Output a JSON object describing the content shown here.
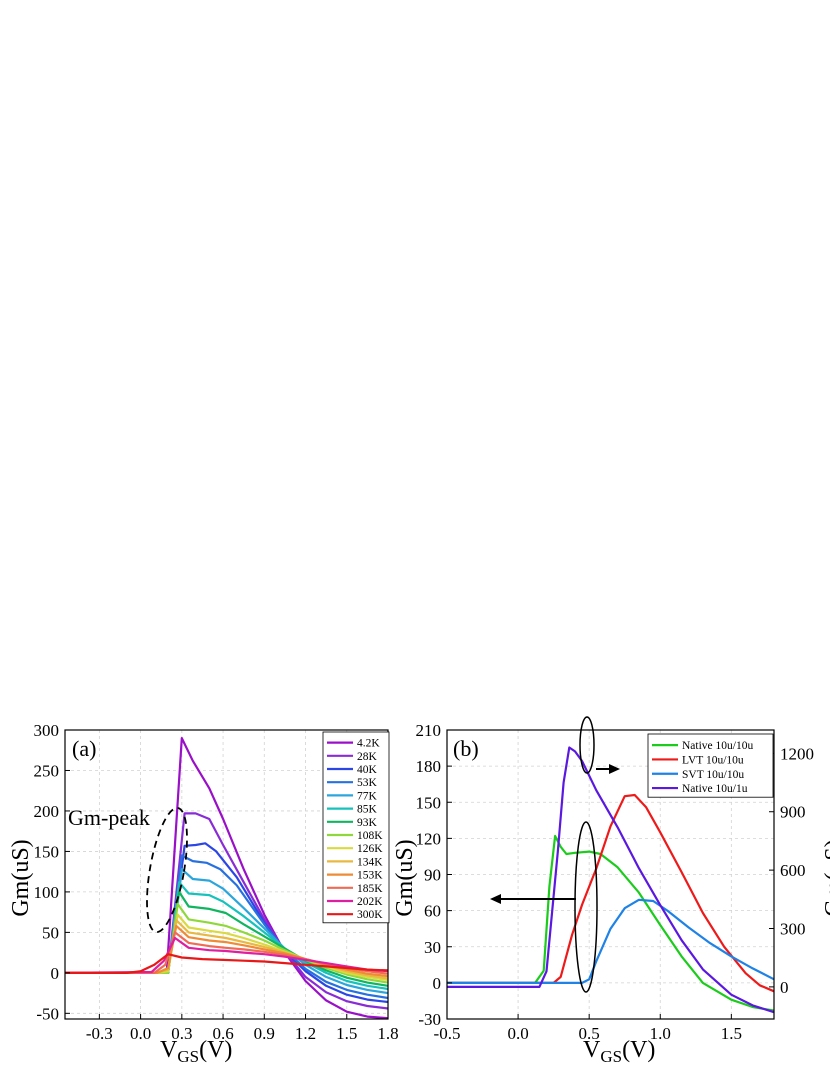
{
  "chart_data": [
    {
      "type": "line",
      "panel_label": "(a)",
      "annotation": "Gm-peak",
      "ylabel": "Gm(uS)",
      "xlabel_main": "V",
      "xlabel_sub": "GS",
      "xlabel_unit": "(V)",
      "xlim": [
        -0.55,
        1.8
      ],
      "ylim": [
        -57,
        300
      ],
      "xticks": [
        "-0.3",
        "0.0",
        "0.3",
        "0.6",
        "0.9",
        "1.2",
        "1.5",
        "1.8"
      ],
      "xtick_values": [
        -0.3,
        0.0,
        0.3,
        0.6,
        0.9,
        1.2,
        1.5,
        1.8
      ],
      "yticks": [
        "300",
        "250",
        "200",
        "150",
        "100",
        "50",
        "0",
        "-50"
      ],
      "ytick_values": [
        300,
        250,
        200,
        150,
        100,
        50,
        0,
        -50
      ],
      "grid": true,
      "legend_position": "top-right",
      "series": [
        {
          "name": "4.2K",
          "color": "#9a10c8",
          "x": [
            -0.55,
            0.09,
            0.19,
            0.3,
            0.38,
            0.5,
            0.6,
            0.75,
            0.9,
            1.05,
            1.2,
            1.35,
            1.5,
            1.65,
            1.8
          ],
          "y": [
            0,
            0,
            0,
            290,
            262,
            228,
            190,
            128,
            72,
            25,
            -10,
            -34,
            -48,
            -54,
            -56
          ]
        },
        {
          "name": "28K",
          "color": "#8a2cd6",
          "x": [
            -0.55,
            0.09,
            0.2,
            0.32,
            0.4,
            0.5,
            0.6,
            0.75,
            0.9,
            1.05,
            1.2,
            1.35,
            1.5,
            1.65,
            1.8
          ],
          "y": [
            0,
            0,
            0,
            197,
            197,
            190,
            158,
            112,
            66,
            26,
            -5,
            -24,
            -35,
            -41,
            -44
          ]
        },
        {
          "name": "40K",
          "color": "#2c46e6",
          "x": [
            -0.55,
            0.1,
            0.2,
            0.32,
            0.4,
            0.47,
            0.55,
            0.7,
            0.9,
            1.05,
            1.2,
            1.35,
            1.5,
            1.65,
            1.8
          ],
          "y": [
            0,
            0,
            0,
            157,
            158,
            160,
            150,
            118,
            62,
            27,
            2,
            -16,
            -27,
            -33,
            -36
          ]
        },
        {
          "name": "53K",
          "color": "#2670e0",
          "x": [
            -0.55,
            0.11,
            0.2,
            0.3,
            0.38,
            0.48,
            0.58,
            0.7,
            0.9,
            1.05,
            1.2,
            1.35,
            1.5,
            1.65,
            1.8
          ],
          "y": [
            0,
            0,
            0,
            145,
            138,
            136,
            128,
            108,
            60,
            28,
            5,
            -11,
            -21,
            -27,
            -31
          ]
        },
        {
          "name": "77K",
          "color": "#2aa6dc",
          "x": [
            -0.55,
            0.12,
            0.2,
            0.3,
            0.38,
            0.5,
            0.6,
            0.75,
            0.9,
            1.05,
            1.2,
            1.35,
            1.5,
            1.65,
            1.8
          ],
          "y": [
            0,
            0,
            0,
            128,
            116,
            114,
            104,
            80,
            55,
            30,
            10,
            -5,
            -15,
            -21,
            -25
          ]
        },
        {
          "name": "85K",
          "color": "#17c2bc",
          "x": [
            -0.55,
            0.12,
            0.2,
            0.28,
            0.35,
            0.5,
            0.6,
            0.75,
            0.9,
            1.05,
            1.2,
            1.35,
            1.5,
            1.65,
            1.8
          ],
          "y": [
            0,
            0,
            0,
            112,
            98,
            96,
            88,
            70,
            50,
            30,
            13,
            0,
            -10,
            -16,
            -20
          ]
        },
        {
          "name": "93K",
          "color": "#10b560",
          "x": [
            -0.55,
            0.12,
            0.2,
            0.28,
            0.35,
            0.5,
            0.62,
            0.75,
            0.9,
            1.05,
            1.2,
            1.35,
            1.5,
            1.65,
            1.8
          ],
          "y": [
            0,
            0,
            0,
            100,
            82,
            79,
            74,
            60,
            45,
            30,
            15,
            3,
            -6,
            -12,
            -16
          ]
        },
        {
          "name": "108K",
          "color": "#8fd83a",
          "x": [
            -0.55,
            0.12,
            0.2,
            0.27,
            0.35,
            0.5,
            0.62,
            0.75,
            0.9,
            1.05,
            1.2,
            1.35,
            1.5,
            1.65,
            1.8
          ],
          "y": [
            0,
            0,
            0,
            85,
            66,
            62,
            58,
            50,
            40,
            28,
            16,
            6,
            -2,
            -8,
            -12
          ]
        },
        {
          "name": "126K",
          "color": "#dada40",
          "x": [
            -0.55,
            0.12,
            0.2,
            0.27,
            0.35,
            0.5,
            0.62,
            0.75,
            0.9,
            1.05,
            1.2,
            1.35,
            1.5,
            1.65,
            1.8
          ],
          "y": [
            0,
            0,
            2,
            72,
            56,
            52,
            49,
            43,
            35,
            26,
            17,
            8,
            0,
            -5,
            -9
          ]
        },
        {
          "name": "134K",
          "color": "#e8b840",
          "x": [
            -0.55,
            0.12,
            0.2,
            0.26,
            0.35,
            0.5,
            0.62,
            0.75,
            0.9,
            1.05,
            1.2,
            1.35,
            1.5,
            1.65,
            1.8
          ],
          "y": [
            0,
            0,
            4,
            65,
            50,
            46,
            43,
            38,
            32,
            25,
            17,
            9,
            2,
            -3,
            -7
          ]
        },
        {
          "name": "153K",
          "color": "#ef8a35",
          "x": [
            -0.55,
            0.12,
            0.2,
            0.26,
            0.35,
            0.5,
            0.62,
            0.75,
            0.9,
            1.05,
            1.2,
            1.35,
            1.5,
            1.65,
            1.8
          ],
          "y": [
            0,
            0,
            6,
            58,
            44,
            40,
            38,
            34,
            29,
            24,
            17,
            10,
            4,
            -1,
            -4
          ]
        },
        {
          "name": "185K",
          "color": "#f06a55",
          "x": [
            -0.55,
            0.1,
            0.18,
            0.25,
            0.35,
            0.5,
            0.62,
            0.75,
            0.9,
            1.05,
            1.2,
            1.35,
            1.5,
            1.65,
            1.8
          ],
          "y": [
            0,
            0,
            10,
            50,
            37,
            33,
            31,
            29,
            26,
            22,
            17,
            11,
            6,
            2,
            -1
          ]
        },
        {
          "name": "202K",
          "color": "#de20a0",
          "x": [
            -0.55,
            0.08,
            0.17,
            0.25,
            0.35,
            0.5,
            0.62,
            0.75,
            0.9,
            1.05,
            1.2,
            1.35,
            1.5,
            1.65,
            1.8
          ],
          "y": [
            0,
            1,
            15,
            43,
            31,
            28,
            27,
            25,
            23,
            20,
            16,
            12,
            8,
            4,
            2
          ]
        },
        {
          "name": "300K",
          "color": "#e81818",
          "x": [
            -0.55,
            -0.1,
            0.0,
            0.1,
            0.2,
            0.3,
            0.45,
            0.6,
            0.75,
            0.9,
            1.05,
            1.2,
            1.35,
            1.5,
            1.65,
            1.8
          ],
          "y": [
            0,
            0,
            2,
            10,
            23,
            19,
            17,
            16,
            15,
            14,
            12,
            10,
            8,
            6,
            4,
            3
          ]
        }
      ]
    },
    {
      "type": "line",
      "panel_label": "(b)",
      "ylabel": "Gm(uS)",
      "ylabel_right": "Gm(uS)",
      "xlabel_main": "V",
      "xlabel_sub": "GS",
      "xlabel_unit": "(V)",
      "xlim": [
        -0.5,
        1.8
      ],
      "ylim": [
        -30,
        210
      ],
      "ylim_right": [
        -165,
        1320
      ],
      "xticks": [
        "-0.5",
        "0.0",
        "0.5",
        "1.0",
        "1.5"
      ],
      "xtick_values": [
        -0.5,
        0.0,
        0.5,
        1.0,
        1.5
      ],
      "yticks": [
        "210",
        "180",
        "150",
        "120",
        "90",
        "60",
        "30",
        "0",
        "-30"
      ],
      "ytick_values": [
        210,
        180,
        150,
        120,
        90,
        60,
        30,
        0,
        -30
      ],
      "yticks_right": [
        "1200",
        "900",
        "600",
        "300",
        "0"
      ],
      "ytick_values_right": [
        1200,
        900,
        600,
        300,
        0
      ],
      "grid": true,
      "legend_position": "top-right",
      "series": [
        {
          "name": "Native 10u/10u",
          "color": "#1ccc1c",
          "axis": "left",
          "x": [
            -0.5,
            0.12,
            0.18,
            0.22,
            0.26,
            0.3,
            0.34,
            0.4,
            0.5,
            0.58,
            0.7,
            0.85,
            1.0,
            1.15,
            1.3,
            1.5,
            1.65,
            1.8
          ],
          "y": [
            0,
            0,
            10,
            80,
            122,
            113,
            107,
            108,
            109,
            107,
            96,
            75,
            48,
            22,
            0,
            -14,
            -20,
            -23
          ]
        },
        {
          "name": "LVT 10u/10u",
          "color": "#ee1a1a",
          "axis": "left",
          "x": [
            -0.5,
            0.25,
            0.3,
            0.38,
            0.45,
            0.55,
            0.65,
            0.75,
            0.82,
            0.9,
            1.0,
            1.15,
            1.3,
            1.45,
            1.6,
            1.7,
            1.8
          ],
          "y": [
            0,
            0,
            5,
            40,
            65,
            95,
            130,
            155,
            156,
            146,
            125,
            92,
            58,
            30,
            8,
            -2,
            -7
          ]
        },
        {
          "name": "SVT 10u/10u",
          "color": "#1e82e6",
          "axis": "left",
          "x": [
            -0.5,
            0.45,
            0.5,
            0.55,
            0.65,
            0.75,
            0.85,
            0.95,
            1.05,
            1.2,
            1.35,
            1.5,
            1.65,
            1.8
          ],
          "y": [
            0,
            0,
            3,
            18,
            45,
            62,
            69,
            68,
            60,
            46,
            33,
            22,
            12,
            3
          ]
        },
        {
          "name": "Native 10u/1u",
          "color": "#5a18e0",
          "axis": "right",
          "x": [
            -0.5,
            0.15,
            0.2,
            0.28,
            0.32,
            0.36,
            0.4,
            0.45,
            0.55,
            0.7,
            0.85,
            1.0,
            1.15,
            1.3,
            1.5,
            1.65,
            1.8
          ],
          "y": [
            0,
            0,
            80,
            700,
            1050,
            1230,
            1210,
            1160,
            1010,
            820,
            610,
            420,
            240,
            90,
            -40,
            -95,
            -130
          ]
        }
      ]
    }
  ]
}
